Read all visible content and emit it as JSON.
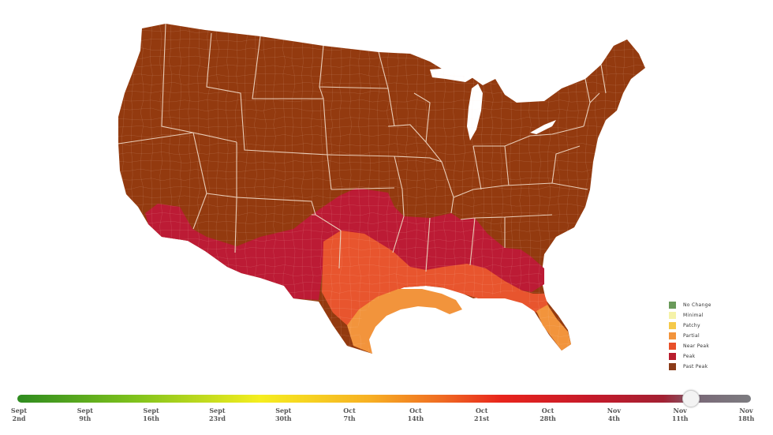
{
  "legend": [
    {
      "label": "No Change",
      "color": "#6a9a5a"
    },
    {
      "label": "Minimal",
      "color": "#f5f2a8"
    },
    {
      "label": "Patchy",
      "color": "#f5c94a"
    },
    {
      "label": "Partial",
      "color": "#f2943c"
    },
    {
      "label": "Near Peak",
      "color": "#e8502a"
    },
    {
      "label": "Peak",
      "color": "#b81d2e"
    },
    {
      "label": "Past Peak",
      "color": "#8a3a18"
    }
  ],
  "map_colors": {
    "past_peak": "#933a0f",
    "peak": "#bc1b35",
    "near_peak": "#e8552e",
    "partial": "#f2943c",
    "borders": "#e9cdb8"
  },
  "timeline": {
    "position_fraction": 0.9167,
    "ticks": [
      {
        "line1": "Sept",
        "line2": "2nd"
      },
      {
        "line1": "Sept",
        "line2": "9th"
      },
      {
        "line1": "Sept",
        "line2": "16th"
      },
      {
        "line1": "Sept",
        "line2": "23rd"
      },
      {
        "line1": "Sept",
        "line2": "30th"
      },
      {
        "line1": "Oct",
        "line2": "7th"
      },
      {
        "line1": "Oct",
        "line2": "14th"
      },
      {
        "line1": "Oct",
        "line2": "21st"
      },
      {
        "line1": "Oct",
        "line2": "28th"
      },
      {
        "line1": "Nov",
        "line2": "4th"
      },
      {
        "line1": "Nov",
        "line2": "11th"
      },
      {
        "line1": "Nov",
        "line2": "18th"
      }
    ]
  }
}
